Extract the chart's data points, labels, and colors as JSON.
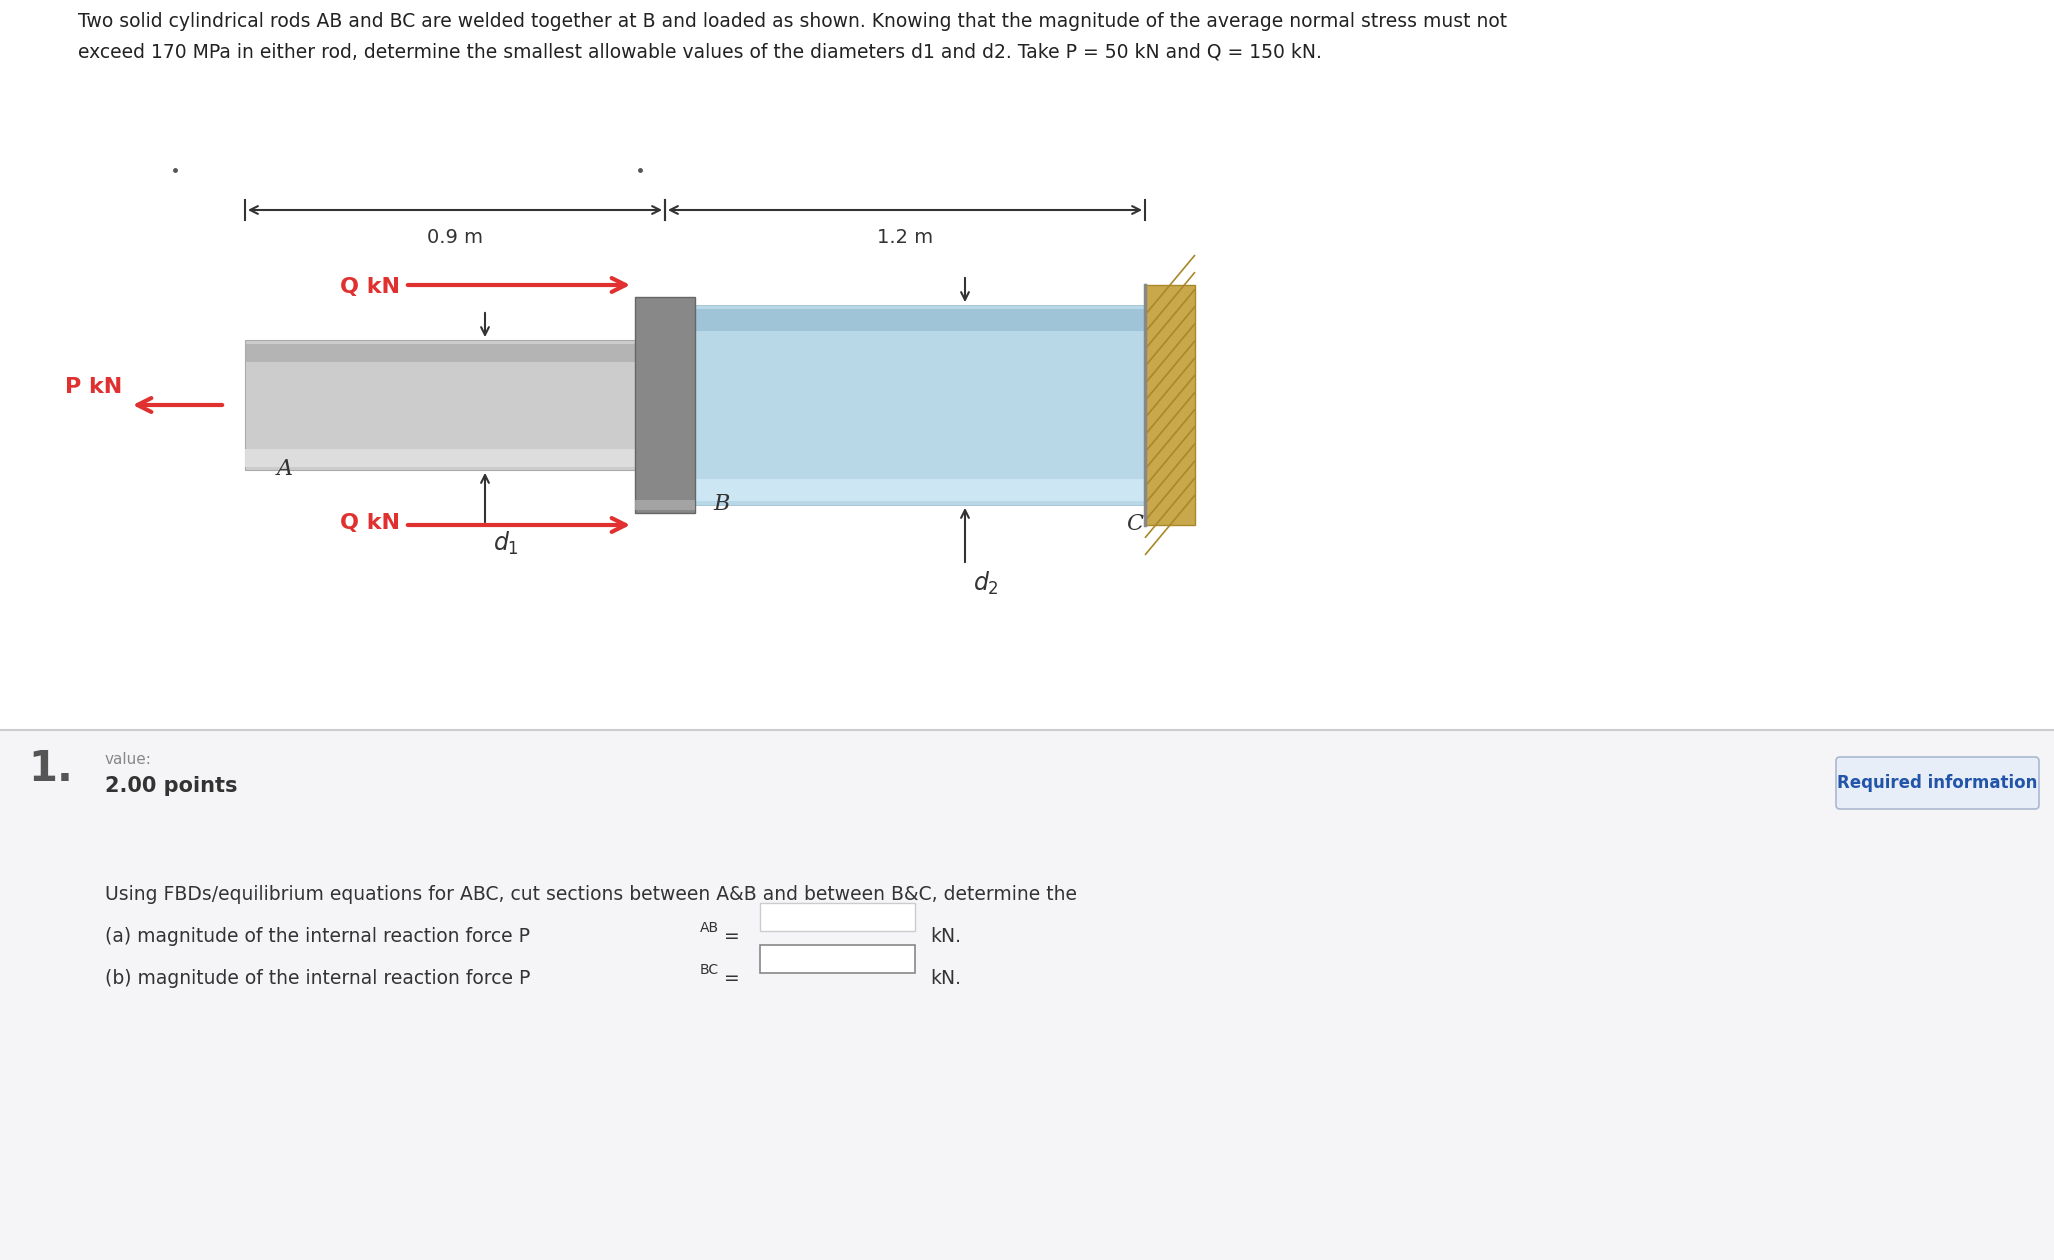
{
  "bg_color": "#f5f5f5",
  "panel_bg": "#ffffff",
  "header_text_line1": "Two solid cylindrical rods AB and BC are welded together at B and loaded as shown. Knowing that the magnitude of the average normal stress must not",
  "header_text_line2": "exceed 170 MPa in either rod, determine the smallest allowable values of the diameters d1 and d2. Take P = 50 kN and Q = 150 kN.",
  "number_text": "1.",
  "value_label": "value:",
  "points_text": "2.00 points",
  "req_info_text": "Required information",
  "body_text": "Using FBDs/equilibrium equations for ABC, cut sections between A&B and between B&C, determine the",
  "line_a_pre": "(a) magnitude of the internal reaction force P",
  "line_a_sub": "AB",
  "line_a_post": " =",
  "line_b_pre": "(b) magnitude of the internal reaction force P",
  "line_b_sub": "BC",
  "line_b_post": " =",
  "kN_label": "kN.",
  "dim_09": "0.9 m",
  "dim_12": "1.2 m",
  "label_A": "A",
  "label_B": "B",
  "label_C": "C",
  "arrow_color": "#e03030",
  "dim_line_color": "#333333",
  "rod_ab_main": "#cccccc",
  "rod_ab_light": "#e0e0e0",
  "rod_ab_dark": "#aaaaaa",
  "rod_bc_main": "#b8d8e8",
  "rod_bc_light": "#d0eaf5",
  "rod_bc_dark": "#90b8cc",
  "flange_color": "#888888",
  "wall_tan": "#c8a84a",
  "wall_dark": "#a88828"
}
